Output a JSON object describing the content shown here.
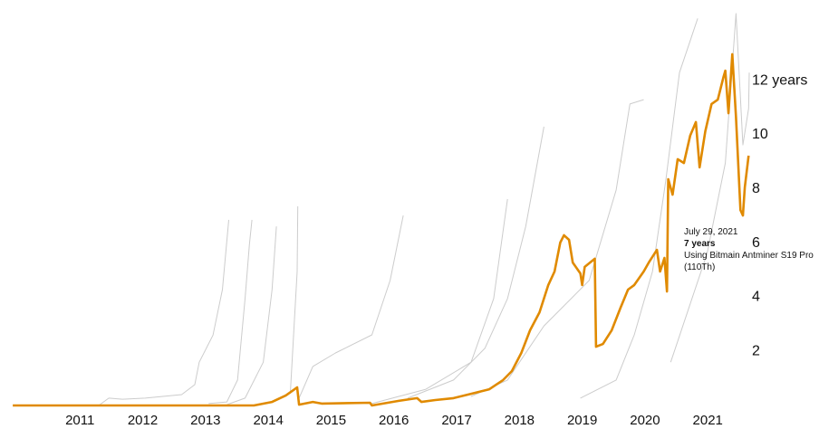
{
  "chart_data": {
    "type": "line",
    "xlim": [
      2009.9,
      2021.7
    ],
    "xticks": [
      2011,
      2012,
      2013,
      2014,
      2015,
      2016,
      2017,
      2018,
      2019,
      2020,
      2021
    ],
    "ylim": [
      0,
      15
    ],
    "yticks": [
      2,
      4,
      6,
      8,
      10,
      {
        "value": 12,
        "label": "12 years"
      }
    ],
    "annotation": {
      "date": "July 29, 2021",
      "value": "7 years",
      "text": "Using Bitmain Antminer S19 Pro (110Th)"
    },
    "series": [
      {
        "color": "#cccccc",
        "x": [
          2011.3,
          2011.46,
          2011.68,
          2012.04,
          2012.62,
          2012.83,
          2012.9,
          2013.12,
          2013.27,
          2013.37
        ],
        "values": [
          0,
          0.27,
          0.23,
          0.27,
          0.4,
          0.77,
          1.6,
          2.6,
          4.28,
          6.86
        ]
      },
      {
        "color": "#cccccc",
        "x": [
          2013.05,
          2013.34,
          2013.51,
          2013.63,
          2013.7,
          2013.74
        ],
        "values": [
          0.07,
          0.13,
          0.94,
          3.95,
          5.95,
          6.86
        ]
      },
      {
        "color": "#cccccc",
        "x": [
          2013.34,
          2013.63,
          2013.92,
          2014.06,
          2014.13
        ],
        "values": [
          0.03,
          0.27,
          1.6,
          4.28,
          6.62
        ]
      },
      {
        "color": "#cccccc",
        "x": [
          2014.35,
          2014.46,
          2014.47
        ],
        "values": [
          0.43,
          4.95,
          7.36
        ]
      },
      {
        "color": "#cccccc",
        "x": [
          2014.49,
          2014.71,
          2015.07,
          2015.65,
          2015.94,
          2016.15
        ],
        "values": [
          0.27,
          1.44,
          1.94,
          2.61,
          4.62,
          7.02
        ]
      },
      {
        "color": "#cccccc",
        "x": [
          2015.65,
          2016.51,
          2017.23,
          2017.59,
          2017.81
        ],
        "values": [
          0.07,
          0.6,
          1.6,
          3.95,
          7.63
        ]
      },
      {
        "color": "#cccccc",
        "x": [
          2016.22,
          2016.95,
          2017.45,
          2017.81,
          2018.1,
          2018.39
        ],
        "values": [
          0.27,
          0.94,
          2.11,
          3.95,
          6.62,
          10.3
        ]
      },
      {
        "color": "#cccccc",
        "x": [
          2017.23,
          2017.81,
          2018.39,
          2019.11,
          2019.54,
          2019.76,
          2019.98
        ],
        "values": [
          0.33,
          0.94,
          2.94,
          4.62,
          7.96,
          11.14,
          11.3
        ]
      },
      {
        "color": "#cccccc",
        "x": [
          2018.97,
          2019.54,
          2019.83,
          2020.12,
          2020.33,
          2020.55,
          2020.84
        ],
        "values": [
          0.27,
          0.94,
          2.61,
          4.95,
          8.29,
          12.3,
          14.3
        ]
      },
      {
        "color": "#cccccc",
        "x": [
          2020.41,
          2020.99,
          2021.28,
          2021.45,
          2021.56,
          2021.65,
          2021.66
        ],
        "values": [
          1.6,
          5.62,
          8.96,
          14.48,
          9.63,
          10.97,
          12.3
        ]
      },
      {
        "color": "#e08a00",
        "x": [
          2009.93,
          2013.77,
          2014.06,
          2014.28,
          2014.42,
          2014.46,
          2014.49,
          2014.71,
          2014.85,
          2015.62,
          2015.65,
          2016.08,
          2016.37,
          2016.44,
          2016.66,
          2016.95,
          2017.23,
          2017.52,
          2017.74,
          2017.88,
          2018.03,
          2018.17,
          2018.32,
          2018.46,
          2018.56,
          2018.65,
          2018.71,
          2018.79,
          2018.85,
          2018.97,
          2019.0,
          2019.04,
          2019.2,
          2019.22,
          2019.33,
          2019.47,
          2019.61,
          2019.73,
          2019.83,
          2019.98,
          2020.06,
          2020.19,
          2020.24,
          2020.31,
          2020.35,
          2020.37,
          2020.44,
          2020.52,
          2020.62,
          2020.72,
          2020.81,
          2020.87,
          2020.96,
          2021.06,
          2021.16,
          2021.25,
          2021.28,
          2021.33,
          2021.39,
          2021.45,
          2021.52,
          2021.56,
          2021.59,
          2021.65
        ],
        "values": [
          0,
          0,
          0.13,
          0.37,
          0.6,
          0.67,
          0.03,
          0.13,
          0.07,
          0.1,
          0,
          0.17,
          0.27,
          0.13,
          0.2,
          0.27,
          0.43,
          0.6,
          0.94,
          1.27,
          1.94,
          2.78,
          3.44,
          4.45,
          4.95,
          6.02,
          6.29,
          6.12,
          5.28,
          4.88,
          4.45,
          5.12,
          5.42,
          2.17,
          2.27,
          2.78,
          3.61,
          4.28,
          4.45,
          4.95,
          5.28,
          5.75,
          4.95,
          5.45,
          4.21,
          8.36,
          7.79,
          9.1,
          8.96,
          9.97,
          10.47,
          8.8,
          10.13,
          11.14,
          11.3,
          12.14,
          12.37,
          10.8,
          12.98,
          10.64,
          7.22,
          7.02,
          8.06,
          9.23
        ]
      }
    ]
  }
}
